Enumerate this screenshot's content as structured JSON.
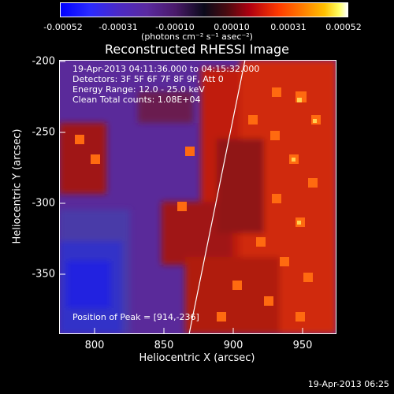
{
  "colorbar": {
    "ticks": [
      "-0.00052",
      "-0.00031",
      "-0.00010",
      "0.00010",
      "0.00031",
      "0.00052"
    ],
    "units": "(photons cm⁻² s⁻¹ asec⁻²)"
  },
  "title": "Reconstructed RHESSI Image",
  "info": {
    "time": "19-Apr-2013 04:11:36.000 to 04:15:32.000",
    "detectors": "Detectors: 3F 5F 6F 7F 8F 9F, Att 0",
    "energy": "Energy Range: 12.0 - 25.0 keV",
    "clean": "Clean     Total counts: 1.08E+04",
    "peak": "Position of Peak = [914,-236]"
  },
  "axes": {
    "xlabel": "Heliocentric X (arcsec)",
    "ylabel": "Heliocentric Y (arcsec)",
    "xticks": [
      "800",
      "850",
      "900",
      "950"
    ],
    "yticks": [
      "-200",
      "-250",
      "-300",
      "-350"
    ]
  },
  "timestamp": "19-Apr-2013 06:25"
}
